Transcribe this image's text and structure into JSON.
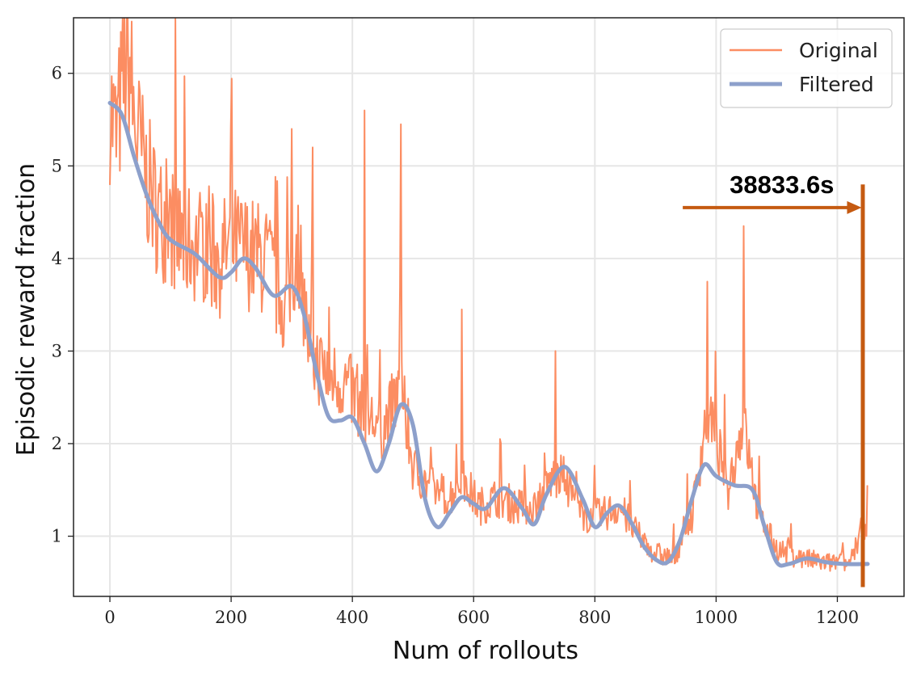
{
  "chart_data": {
    "type": "line",
    "title": "",
    "xlabel": "Num of rollouts",
    "ylabel": "Episodic reward fraction",
    "xlim": [
      -60,
      1310
    ],
    "ylim": [
      0.35,
      6.6
    ],
    "xticks": [
      0,
      200,
      400,
      600,
      800,
      1000,
      1200
    ],
    "yticks": [
      1,
      2,
      3,
      4,
      5,
      6
    ],
    "grid": true,
    "legend_position": "top-right",
    "series": [
      {
        "name": "Original",
        "color": "#fc8d62",
        "style": "noisy",
        "values_x": [
          0,
          10,
          20,
          30,
          40,
          60,
          80,
          100,
          120,
          150,
          180,
          200,
          230,
          260,
          290,
          310,
          330,
          360,
          390,
          420,
          450,
          480,
          500,
          530,
          560,
          580,
          610,
          640,
          670,
          700,
          730,
          750,
          780,
          810,
          840,
          870,
          900,
          930,
          960,
          985,
          1000,
          1020,
          1045,
          1070,
          1100,
          1140,
          1180,
          1220,
          1250
        ],
        "values_y": [
          5.6,
          5.2,
          5.7,
          6.2,
          5.4,
          4.8,
          4.4,
          4.3,
          4.1,
          4.1,
          3.9,
          4.1,
          4.0,
          3.9,
          3.4,
          4.1,
          2.9,
          2.7,
          2.6,
          2.3,
          2.1,
          2.6,
          1.7,
          1.5,
          1.4,
          1.6,
          1.3,
          1.4,
          1.3,
          1.3,
          1.6,
          1.6,
          1.2,
          1.2,
          1.3,
          1.0,
          0.8,
          0.75,
          1.2,
          2.3,
          2.0,
          1.5,
          2.2,
          1.2,
          0.85,
          0.75,
          0.7,
          0.7,
          1.2
        ],
        "peaks": [
          {
            "x": 30,
            "y": 6.3
          },
          {
            "x": 300,
            "y": 5.4
          },
          {
            "x": 335,
            "y": 5.2
          },
          {
            "x": 420,
            "y": 5.6
          },
          {
            "x": 480,
            "y": 5.45
          },
          {
            "x": 580,
            "y": 3.45
          },
          {
            "x": 735,
            "y": 3.0
          },
          {
            "x": 985,
            "y": 3.75
          },
          {
            "x": 1045,
            "y": 4.35
          },
          {
            "x": 1250,
            "y": 1.55
          }
        ]
      },
      {
        "name": "Filtered",
        "color": "#8da0cb",
        "x": [
          0,
          20,
          40,
          60,
          80,
          100,
          140,
          180,
          200,
          220,
          240,
          270,
          300,
          320,
          340,
          360,
          380,
          400,
          420,
          440,
          460,
          480,
          500,
          520,
          540,
          560,
          580,
          600,
          620,
          650,
          680,
          700,
          720,
          750,
          780,
          800,
          820,
          840,
          860,
          880,
          900,
          920,
          940,
          960,
          980,
          1000,
          1030,
          1060,
          1080,
          1100,
          1120,
          1150,
          1180,
          1210,
          1250
        ],
        "y": [
          5.68,
          5.55,
          5.1,
          4.7,
          4.4,
          4.2,
          4.05,
          3.8,
          3.85,
          4.0,
          3.9,
          3.6,
          3.7,
          3.4,
          2.8,
          2.3,
          2.25,
          2.28,
          2.0,
          1.7,
          2.0,
          2.42,
          2.2,
          1.4,
          1.1,
          1.25,
          1.42,
          1.35,
          1.3,
          1.52,
          1.3,
          1.13,
          1.45,
          1.75,
          1.4,
          1.1,
          1.25,
          1.33,
          1.15,
          0.9,
          0.75,
          0.72,
          0.95,
          1.4,
          1.77,
          1.65,
          1.55,
          1.5,
          1.1,
          0.72,
          0.7,
          0.76,
          0.72,
          0.7,
          0.7
        ]
      }
    ],
    "annotations": [
      {
        "type": "arrow",
        "text": "38833.6s",
        "x_start": 945,
        "x_end": 1240,
        "y": 4.55,
        "color": "#c55a11"
      },
      {
        "type": "vline",
        "x": 1242,
        "y_start": 0.45,
        "y_end": 4.8,
        "color": "#c55a11"
      }
    ]
  }
}
